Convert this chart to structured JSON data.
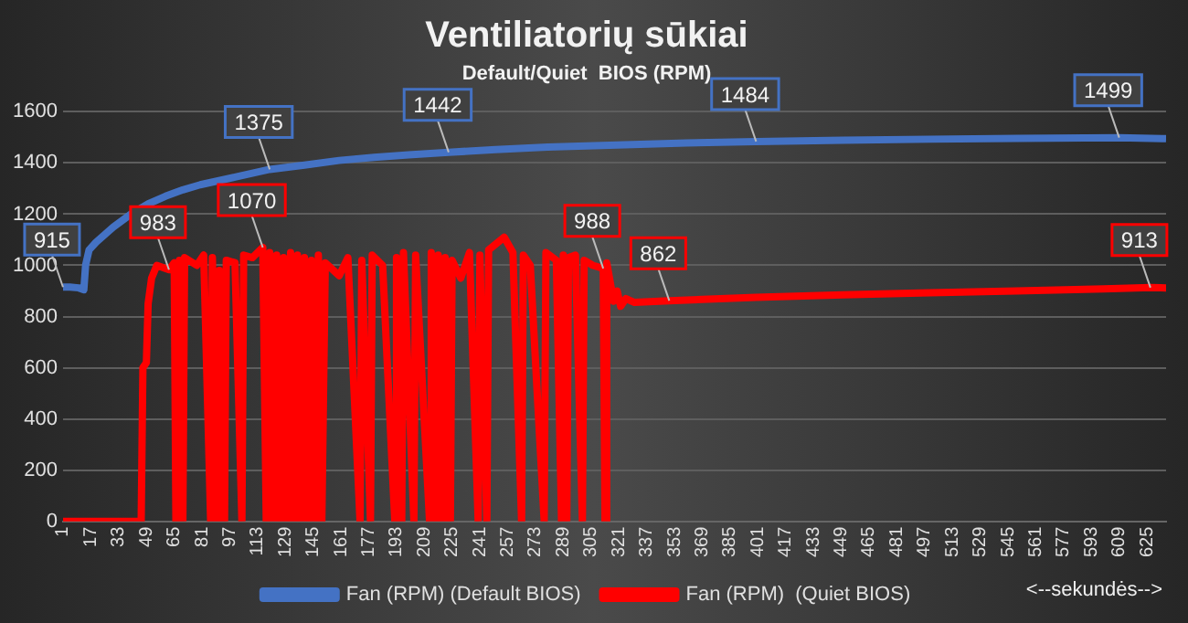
{
  "chart_data": {
    "type": "line",
    "title": "Ventiliatorių sūkiai",
    "subtitle": "Default/Quiet  BIOS (RPM)",
    "xlabel": "<--sekundės-->",
    "xlim": [
      1,
      636
    ],
    "xticks": [
      1,
      17,
      33,
      49,
      65,
      81,
      97,
      113,
      129,
      145,
      161,
      177,
      193,
      209,
      225,
      241,
      257,
      273,
      289,
      305,
      321,
      337,
      353,
      369,
      385,
      401,
      417,
      433,
      449,
      465,
      481,
      497,
      513,
      529,
      545,
      561,
      577,
      593,
      609,
      625
    ],
    "ylim": [
      0,
      1600
    ],
    "yticks": [
      0,
      200,
      400,
      600,
      800,
      1000,
      1200,
      1400,
      1600
    ],
    "grid": "y",
    "legend": "bottom",
    "marker": "none",
    "line_style": "solid",
    "series": [
      {
        "name": "Fan (RPM) (Default BIOS)",
        "color": "#4472c4",
        "x": [
          1,
          5,
          10,
          13,
          14,
          16,
          20,
          30,
          40,
          50,
          60,
          70,
          80,
          100,
          120,
          140,
          160,
          180,
          200,
          223,
          250,
          280,
          320,
          360,
          400,
          450,
          500,
          550,
          609,
          636
        ],
        "values": [
          915,
          915,
          912,
          905,
          1000,
          1060,
          1090,
          1150,
          1200,
          1240,
          1270,
          1295,
          1315,
          1345,
          1375,
          1392,
          1410,
          1422,
          1432,
          1442,
          1452,
          1462,
          1470,
          1478,
          1484,
          1489,
          1493,
          1496,
          1499,
          1495
        ],
        "value_labels": [
          "915",
          null,
          null,
          null,
          null,
          null,
          null,
          null,
          null,
          null,
          null,
          null,
          null,
          null,
          "1375",
          null,
          null,
          null,
          null,
          "1442",
          null,
          null,
          null,
          null,
          "1484",
          null,
          null,
          null,
          "1499",
          null
        ]
      },
      {
        "name": "Fan (RPM)  (Quiet BIOS)",
        "color": "#ff0000",
        "x": [
          1,
          46,
          47,
          49,
          50,
          52,
          55,
          62,
          65,
          66,
          67,
          68,
          70,
          71,
          78,
          82,
          86,
          87,
          90,
          91,
          94,
          95,
          100,
          104,
          105,
          110,
          116,
          118,
          120,
          122,
          124,
          126,
          128,
          130,
          132,
          134,
          136,
          138,
          140,
          142,
          144,
          146,
          148,
          150,
          152,
          160,
          165,
          172,
          173,
          178,
          179,
          185,
          192,
          193,
          196,
          197,
          203,
          204,
          212,
          213,
          216,
          217,
          220,
          221,
          224,
          225,
          230,
          235,
          240,
          241,
          245,
          246,
          255,
          260,
          265,
          266,
          270,
          278,
          279,
          285,
          288,
          289,
          291,
          292,
          296,
          300,
          301,
          306,
          312,
          313,
          314,
          318,
          320,
          322,
          325,
          330,
          350,
          400,
          450,
          500,
          550,
          600,
          627,
          636
        ],
        "values": [
          0,
          0,
          600,
          620,
          850,
          950,
          1000,
          983,
          1010,
          0,
          0,
          1020,
          0,
          1030,
          1000,
          1040,
          0,
          1030,
          0,
          980,
          0,
          1020,
          1010,
          0,
          1040,
          1030,
          1070,
          0,
          1050,
          0,
          1040,
          0,
          1030,
          0,
          1050,
          0,
          1040,
          0,
          1030,
          0,
          1020,
          0,
          1040,
          0,
          1010,
          960,
          1030,
          0,
          1020,
          0,
          1040,
          1000,
          0,
          1030,
          0,
          1050,
          0,
          1040,
          0,
          1050,
          0,
          1040,
          0,
          1030,
          0,
          1020,
          950,
          1050,
          0,
          1040,
          0,
          1060,
          1110,
          1050,
          0,
          1040,
          1000,
          0,
          1050,
          1020,
          0,
          1040,
          0,
          1030,
          1040,
          0,
          1020,
          1000,
          988,
          0,
          1010,
          860,
          900,
          840,
          870,
          855,
          862,
          875,
          885,
          893,
          900,
          908,
          913,
          912
        ],
        "value_labels": [
          null,
          null,
          null,
          null,
          null,
          null,
          null,
          "983",
          null,
          null,
          null,
          null,
          null,
          null,
          null,
          null,
          null,
          null,
          null,
          null,
          null,
          null,
          null,
          null,
          null,
          null,
          "1070",
          null,
          null,
          null,
          null,
          null,
          null,
          null,
          null,
          null,
          null,
          null,
          null,
          null,
          null,
          null,
          null,
          null,
          null,
          null,
          null,
          null,
          null,
          null,
          null,
          null,
          null,
          null,
          null,
          null,
          null,
          null,
          null,
          null,
          null,
          null,
          null,
          null,
          null,
          null,
          null,
          null,
          null,
          null,
          null,
          null,
          null,
          null,
          null,
          null,
          null,
          null,
          null,
          null,
          null,
          null,
          null,
          null,
          null,
          null,
          null,
          null,
          "988",
          null,
          null,
          null,
          null,
          null,
          null,
          null,
          "862",
          null,
          null,
          null,
          null,
          null,
          "913",
          null
        ]
      }
    ]
  }
}
